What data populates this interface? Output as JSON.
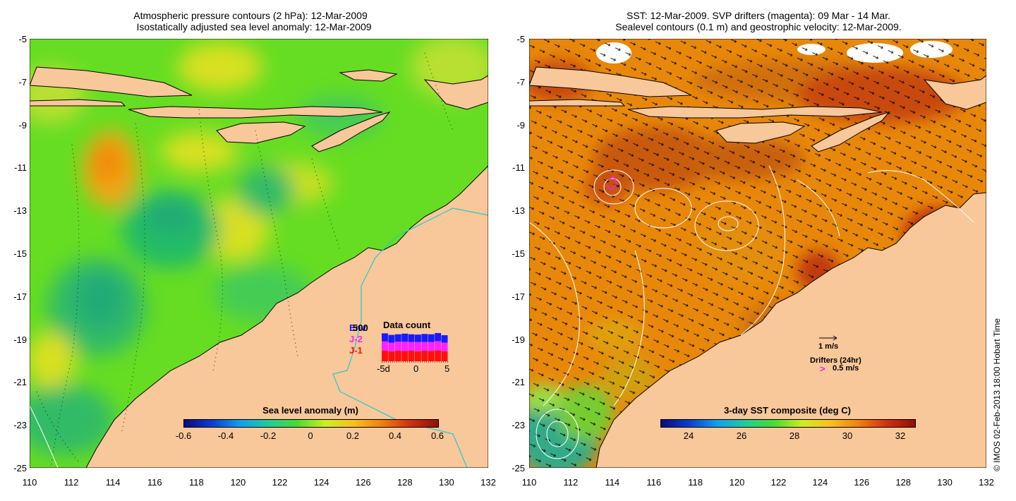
{
  "left_panel": {
    "title_line1": "Atmospheric pressure contours (2 hPa): 12-Mar-2009",
    "title_line2": "Isostatically adjusted sea level anomaly: 12-Mar-2009",
    "colorbar": {
      "title": "Sea level anomaly (m)",
      "ticks": [
        "-0.6",
        "-0.4",
        "-0.2",
        "0",
        "0.2",
        "0.4",
        "0.6"
      ]
    },
    "data_count": {
      "title": "Data count",
      "missions": [
        "Env",
        "J-2",
        "J-1"
      ],
      "mission_colors": [
        "#1a1aff",
        "#ff22ff",
        "#ff1010"
      ],
      "max_label": "500",
      "x_ticks": [
        "-5d",
        "0",
        "5"
      ],
      "counts": {
        "J-1": [
          170,
          160,
          170,
          165,
          170,
          160,
          170,
          165,
          175,
          160
        ],
        "J-2": [
          150,
          140,
          145,
          150,
          140,
          150,
          140,
          145,
          150,
          140
        ],
        "Env": [
          130,
          125,
          120,
          130,
          125,
          120,
          130,
          125,
          130,
          120
        ]
      }
    }
  },
  "right_panel": {
    "title_line1": "SST: 12-Mar-2009. SVP drifters (magenta): 09 Mar - 14 Mar.",
    "title_line2": "Sealevel contours (0.1 m) and geostrophic velocity: 12-Mar-2009.",
    "colorbar": {
      "title": "3-day SST composite (deg C)",
      "ticks": [
        "24",
        "26",
        "28",
        "30",
        "32"
      ]
    },
    "velocity_scale_label": "1 m/s",
    "drifter_label": "Drifters (24hr)",
    "drifter_scale_label": "0.5 m/s"
  },
  "axes": {
    "x_ticks": [
      "110",
      "112",
      "114",
      "116",
      "118",
      "120",
      "122",
      "124",
      "126",
      "128",
      "130",
      "132"
    ],
    "y_ticks": [
      "-5",
      "-7",
      "-9",
      "-11",
      "-13",
      "-15",
      "-17",
      "-19",
      "-21",
      "-23",
      "-25"
    ]
  },
  "credit": "© IMOS 02-Feb-2013 18:00 Hobart Time",
  "colors": {
    "land": "#f8c79a",
    "sla_zero": "#66dd22",
    "sst_warm": "#e8880a",
    "sst_hot": "#c23a0a",
    "coast": "#000000",
    "bathymetry": "#22cccc"
  }
}
